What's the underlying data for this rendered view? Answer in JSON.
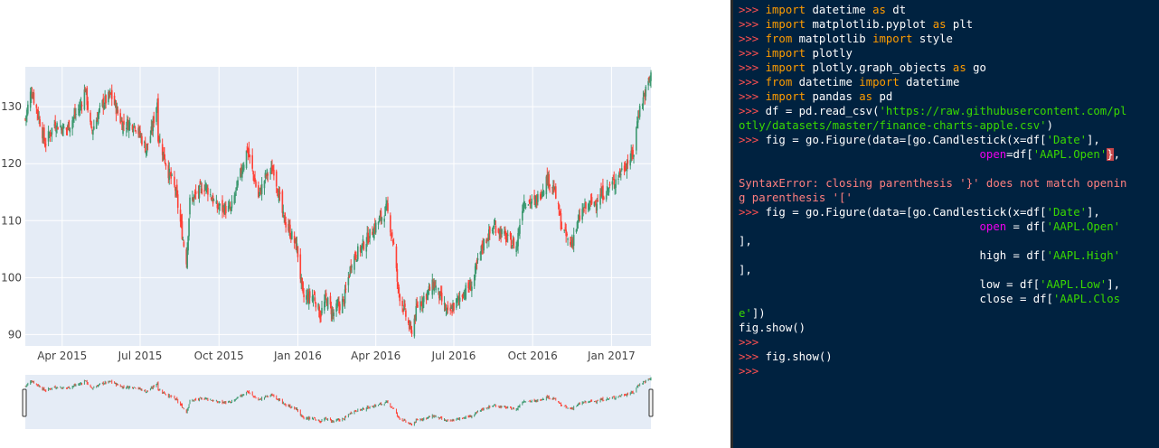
{
  "chart_data": {
    "type": "candlestick",
    "x_tick_labels": [
      "Apr 2015",
      "Jul 2015",
      "Oct 2015",
      "Jan 2016",
      "Apr 2016",
      "Jul 2016",
      "Oct 2016",
      "Jan 2017"
    ],
    "y_tick_labels": [
      "90",
      "100",
      "110",
      "120",
      "130"
    ],
    "ylim": [
      88,
      137
    ],
    "xlim": [
      "2015-02-17",
      "2017-02-16"
    ],
    "grid": true,
    "increasing_color": "#3d9970",
    "decreasing_color": "#ff4136",
    "range_slider": true,
    "close_anchors": [
      [
        "2015-02-17",
        127.8
      ],
      [
        "2015-02-24",
        133.0
      ],
      [
        "2015-03-05",
        128.0
      ],
      [
        "2015-03-12",
        123.5
      ],
      [
        "2015-03-23",
        127.0
      ],
      [
        "2015-04-06",
        126.0
      ],
      [
        "2015-04-22",
        130.0
      ],
      [
        "2015-04-28",
        133.2
      ],
      [
        "2015-05-05",
        125.5
      ],
      [
        "2015-05-18",
        130.5
      ],
      [
        "2015-05-28",
        132.0
      ],
      [
        "2015-06-10",
        127.0
      ],
      [
        "2015-06-25",
        127.0
      ],
      [
        "2015-07-08",
        122.5
      ],
      [
        "2015-07-14",
        125.5
      ],
      [
        "2015-07-21",
        131.0
      ],
      [
        "2015-07-22",
        125.0
      ],
      [
        "2015-08-03",
        118.5
      ],
      [
        "2015-08-11",
        115.5
      ],
      [
        "2015-08-21",
        105.8
      ],
      [
        "2015-08-24",
        103.1
      ],
      [
        "2015-08-28",
        113.3
      ],
      [
        "2015-09-15",
        116.3
      ],
      [
        "2015-09-28",
        112.4
      ],
      [
        "2015-10-15",
        111.9
      ],
      [
        "2015-10-28",
        119.3
      ],
      [
        "2015-11-03",
        122.6
      ],
      [
        "2015-11-16",
        114.2
      ],
      [
        "2015-11-25",
        118.0
      ],
      [
        "2015-12-04",
        119.0
      ],
      [
        "2015-12-15",
        110.5
      ],
      [
        "2015-12-31",
        105.3
      ],
      [
        "2016-01-07",
        96.5
      ],
      [
        "2016-01-20",
        96.8
      ],
      [
        "2016-01-27",
        93.4
      ],
      [
        "2016-02-03",
        96.3
      ],
      [
        "2016-02-11",
        93.7
      ],
      [
        "2016-02-24",
        96.1
      ],
      [
        "2016-03-04",
        103.0
      ],
      [
        "2016-03-18",
        105.9
      ],
      [
        "2016-03-31",
        108.9
      ],
      [
        "2016-04-14",
        112.1
      ],
      [
        "2016-04-22",
        105.7
      ],
      [
        "2016-04-27",
        97.8
      ],
      [
        "2016-05-12",
        90.3
      ],
      [
        "2016-05-20",
        95.2
      ],
      [
        "2016-06-03",
        97.9
      ],
      [
        "2016-06-08",
        99.0
      ],
      [
        "2016-06-24",
        93.4
      ],
      [
        "2016-07-12",
        97.4
      ],
      [
        "2016-07-22",
        98.7
      ],
      [
        "2016-08-04",
        105.9
      ],
      [
        "2016-08-18",
        109.1
      ],
      [
        "2016-09-01",
        106.7
      ],
      [
        "2016-09-12",
        105.4
      ],
      [
        "2016-09-20",
        113.6
      ],
      [
        "2016-10-04",
        113.0
      ],
      [
        "2016-10-18",
        117.5
      ],
      [
        "2016-10-26",
        115.6
      ],
      [
        "2016-11-04",
        108.8
      ],
      [
        "2016-11-14",
        105.7
      ],
      [
        "2016-11-28",
        111.8
      ],
      [
        "2016-12-12",
        113.3
      ],
      [
        "2016-12-30",
        115.8
      ],
      [
        "2017-01-18",
        119.9
      ],
      [
        "2017-01-27",
        121.9
      ],
      [
        "2017-02-01",
        128.8
      ],
      [
        "2017-02-16",
        135.4
      ]
    ]
  },
  "console": {
    "lines": [
      [
        [
          "p",
          ">>> "
        ],
        [
          "k",
          "import"
        ],
        [
          "t",
          " datetime "
        ],
        [
          "k",
          "as"
        ],
        [
          "t",
          " dt"
        ]
      ],
      [
        [
          "p",
          ">>> "
        ],
        [
          "k",
          "import"
        ],
        [
          "t",
          " matplotlib.pyplot "
        ],
        [
          "k",
          "as"
        ],
        [
          "t",
          " plt"
        ]
      ],
      [
        [
          "p",
          ">>> "
        ],
        [
          "k",
          "from"
        ],
        [
          "t",
          " matplotlib "
        ],
        [
          "k",
          "import"
        ],
        [
          "t",
          " style"
        ]
      ],
      [
        [
          "p",
          ">>> "
        ],
        [
          "k",
          "import"
        ],
        [
          "t",
          " plotly"
        ]
      ],
      [
        [
          "p",
          ">>> "
        ],
        [
          "k",
          "import"
        ],
        [
          "t",
          " plotly.graph_objects "
        ],
        [
          "k",
          "as"
        ],
        [
          "t",
          " go"
        ]
      ],
      [
        [
          "p",
          ">>> "
        ],
        [
          "k",
          "from"
        ],
        [
          "t",
          " datetime "
        ],
        [
          "k",
          "import"
        ],
        [
          "t",
          " datetime"
        ]
      ],
      [
        [
          "p",
          ">>> "
        ],
        [
          "k",
          "import"
        ],
        [
          "t",
          " pandas "
        ],
        [
          "k",
          "as"
        ],
        [
          "t",
          " pd"
        ]
      ],
      [
        [
          "p",
          ">>> "
        ],
        [
          "t",
          "df = pd.read_csv("
        ],
        [
          "s",
          "'https://raw.githubusercontent.com/pl"
        ]
      ],
      [
        [
          "s",
          "otly/datasets/master/finance-charts-apple.csv'"
        ],
        [
          "t",
          ")"
        ]
      ],
      [
        [
          "p",
          ">>> "
        ],
        [
          "t",
          "fig = go.Figure(data=[go.Candlestick(x=df["
        ],
        [
          "s",
          "'Date'"
        ],
        [
          "t",
          "],"
        ]
      ],
      [
        [
          "t",
          "                                    "
        ],
        [
          "g",
          "open"
        ],
        [
          "t",
          "=df["
        ],
        [
          "s",
          "'AAPL.Open'"
        ],
        [
          "c",
          "}"
        ],
        [
          "t",
          ","
        ]
      ],
      [
        [
          "t",
          ""
        ]
      ],
      [
        [
          "e",
          "SyntaxError: closing parenthesis '}' does not match openin"
        ]
      ],
      [
        [
          "e",
          "g parenthesis '['"
        ]
      ],
      [
        [
          "p",
          ">>> "
        ],
        [
          "t",
          "fig = go.Figure(data=[go.Candlestick(x=df["
        ],
        [
          "s",
          "'Date'"
        ],
        [
          "t",
          "],"
        ]
      ],
      [
        [
          "t",
          "                                    "
        ],
        [
          "g",
          "open"
        ],
        [
          "t",
          " = df["
        ],
        [
          "s",
          "'AAPL.Open'"
        ]
      ],
      [
        [
          "t",
          "],"
        ]
      ],
      [
        [
          "t",
          "                                    high = df["
        ],
        [
          "s",
          "'AAPL.High'"
        ]
      ],
      [
        [
          "t",
          "],"
        ]
      ],
      [
        [
          "t",
          "                                    low = df["
        ],
        [
          "s",
          "'AAPL.Low'"
        ],
        [
          "t",
          "],"
        ]
      ],
      [
        [
          "t",
          "                                    close = df["
        ],
        [
          "s",
          "'AAPL.Clos"
        ]
      ],
      [
        [
          "s",
          "e'"
        ],
        [
          "t",
          "])"
        ]
      ],
      [
        [
          "t",
          "fig.show()"
        ]
      ],
      [
        [
          "p",
          ">>>"
        ]
      ],
      [
        [
          "p",
          ">>> "
        ],
        [
          "t",
          "fig.show()"
        ]
      ],
      [
        [
          "p",
          ">>>"
        ]
      ]
    ]
  }
}
